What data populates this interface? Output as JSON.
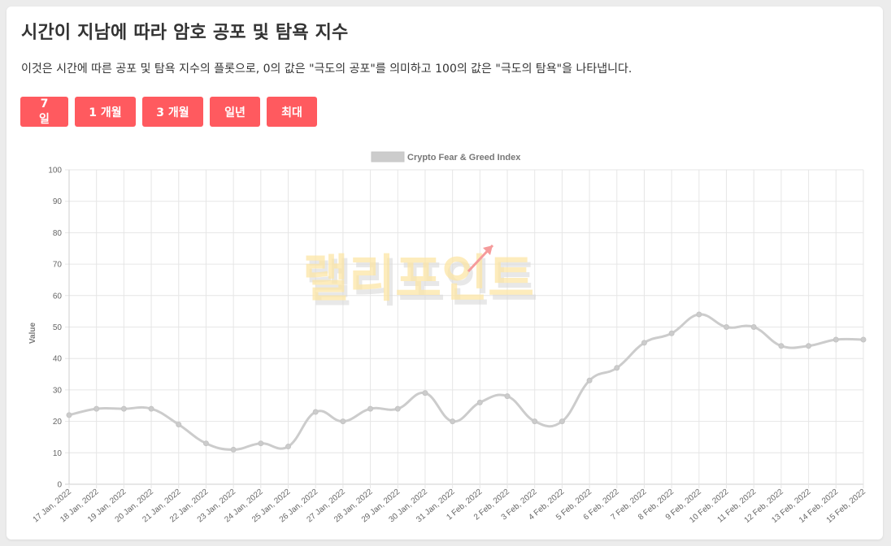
{
  "header": {
    "title": "시간이 지남에 따라 암호 공포 및 탐욕 지수",
    "description": "이것은 시간에 따른 공포 및 탐욕 지수의 플롯으로, 0의 값은 \"극도의 공포\"를 의미하고 100의 값은 \"극도의 탐욕\"을 나타냅니다."
  },
  "range_buttons": [
    "7 일",
    "1 개월",
    "3 개월",
    "일년",
    "최대"
  ],
  "watermark": "랠리포인트",
  "colors": {
    "button": "#ff5a5f",
    "line": "#cccccc",
    "grid": "#e6e6e6"
  },
  "chart_data": {
    "type": "line",
    "legend": {
      "label": "Crypto Fear & Greed Index",
      "position": "top-center"
    },
    "ylabel": "Value",
    "xlabel": "",
    "ylim": [
      0,
      100
    ],
    "yticks": [
      0,
      10,
      20,
      30,
      40,
      50,
      60,
      70,
      80,
      90,
      100
    ],
    "grid": true,
    "categories": [
      "17 Jan, 2022",
      "18 Jan, 2022",
      "19 Jan, 2022",
      "20 Jan, 2022",
      "21 Jan, 2022",
      "22 Jan, 2022",
      "23 Jan, 2022",
      "24 Jan, 2022",
      "25 Jan, 2022",
      "26 Jan, 2022",
      "27 Jan, 2022",
      "28 Jan, 2022",
      "29 Jan, 2022",
      "30 Jan, 2022",
      "31 Jan, 2022",
      "1 Feb, 2022",
      "2 Feb, 2022",
      "3 Feb, 2022",
      "4 Feb, 2022",
      "5 Feb, 2022",
      "6 Feb, 2022",
      "7 Feb, 2022",
      "8 Feb, 2022",
      "9 Feb, 2022",
      "10 Feb, 2022",
      "11 Feb, 2022",
      "12 Feb, 2022",
      "13 Feb, 2022",
      "14 Feb, 2022",
      "15 Feb, 2022"
    ],
    "series": [
      {
        "name": "Crypto Fear & Greed Index",
        "values": [
          22,
          24,
          24,
          24,
          19,
          13,
          11,
          13,
          12,
          23,
          20,
          24,
          24,
          29,
          20,
          26,
          28,
          20,
          20,
          33,
          37,
          45,
          48,
          54,
          50,
          50,
          44,
          44,
          46,
          46
        ]
      }
    ]
  }
}
